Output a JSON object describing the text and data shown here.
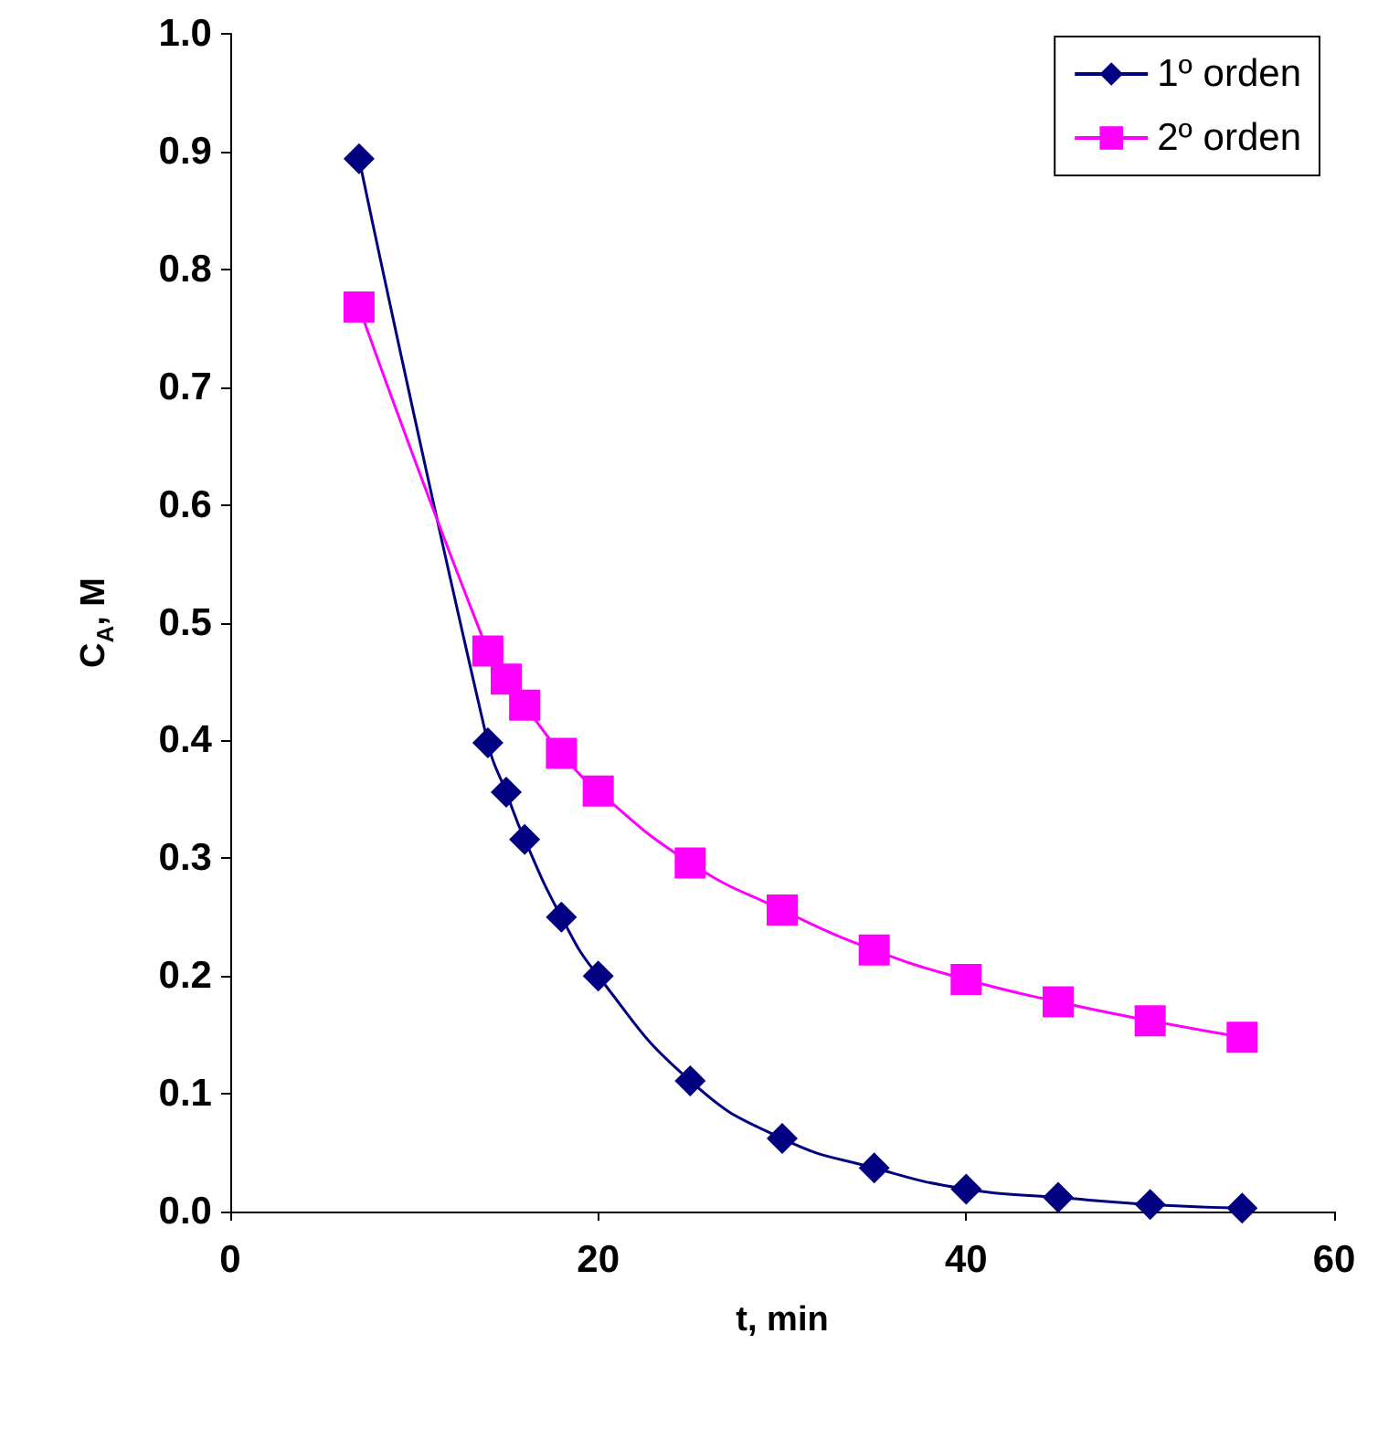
{
  "chart_data": {
    "type": "line",
    "xlabel": "t, min",
    "ylabel": "C$_{A}$, M",
    "x": [
      7,
      14,
      15,
      16,
      18,
      20,
      25,
      30,
      35,
      40,
      45,
      50,
      55
    ],
    "series": [
      {
        "name": "1º orden",
        "color": "#000080",
        "marker": "diamond",
        "values": [
          0.894,
          0.398,
          0.356,
          0.316,
          0.25,
          0.2,
          0.111,
          0.062,
          0.037,
          0.019,
          0.012,
          0.006,
          0.003
        ]
      },
      {
        "name": "2º orden",
        "color": "#ff00ff",
        "marker": "square",
        "values": [
          0.768,
          0.476,
          0.452,
          0.43,
          0.389,
          0.357,
          0.296,
          0.256,
          0.222,
          0.197,
          0.178,
          0.162,
          0.148
        ]
      }
    ],
    "xlim": [
      0,
      60
    ],
    "xticks": [
      0,
      20,
      40,
      60
    ],
    "ylim": [
      0,
      1
    ],
    "yticks": [
      {
        "value": 0,
        "label": "0.0"
      },
      0.1,
      0.2,
      0.3,
      0.4,
      0.5,
      0.6,
      0.7,
      0.8,
      0.9,
      {
        "value": 1,
        "label": "1.0"
      }
    ],
    "grid": false,
    "legend": "top right",
    "line_style": "solid"
  }
}
